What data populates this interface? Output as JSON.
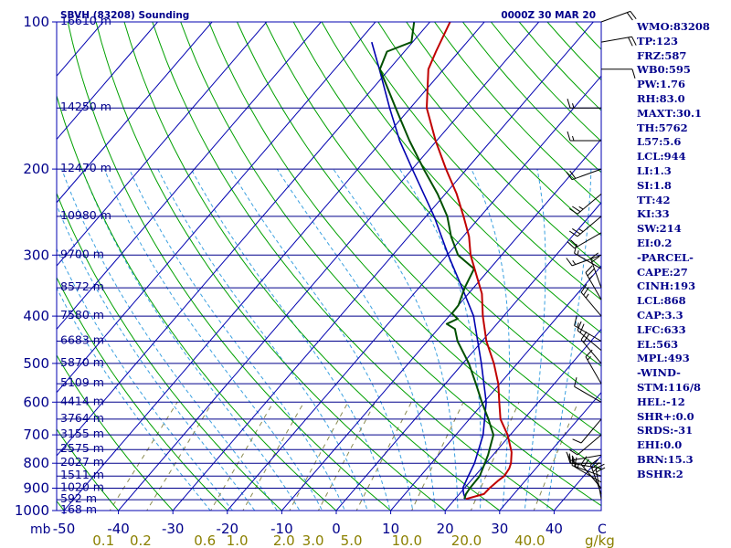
{
  "chart_data": {
    "type": "line",
    "title_left": "SBVH (83208) Sounding",
    "title_right": "0000Z 30 MAR 20",
    "y_axis_unit": "mb",
    "x_axis_unit": "C",
    "mixing_ratio_unit": "g/kg",
    "pressure_ticks": [
      {
        "p": 100,
        "label": "100"
      },
      {
        "p": 200,
        "label": "200"
      },
      {
        "p": 300,
        "label": "300"
      },
      {
        "p": 400,
        "label": "400"
      },
      {
        "p": 500,
        "label": "500"
      },
      {
        "p": 600,
        "label": "600"
      },
      {
        "p": 700,
        "label": "700"
      },
      {
        "p": 800,
        "label": "800"
      },
      {
        "p": 900,
        "label": "900"
      },
      {
        "p": 1000,
        "label": "1000"
      }
    ],
    "temperature_ticks": [
      {
        "t": -50,
        "label": "-50"
      },
      {
        "t": -40,
        "label": "-40"
      },
      {
        "t": -30,
        "label": "-30"
      },
      {
        "t": -20,
        "label": "-20"
      },
      {
        "t": -10,
        "label": "-10"
      },
      {
        "t": 0,
        "label": "0"
      },
      {
        "t": 10,
        "label": "10"
      },
      {
        "t": 20,
        "label": "20"
      },
      {
        "t": 30,
        "label": "30"
      },
      {
        "t": 40,
        "label": "40"
      }
    ],
    "mixing_ratio_labels": [
      {
        "w": 0.1,
        "label": "0.1"
      },
      {
        "w": 0.2,
        "label": "0.2"
      },
      {
        "w": 0.6,
        "label": "0.6"
      },
      {
        "w": 1.0,
        "label": "1.0"
      },
      {
        "w": 2.0,
        "label": "2.0"
      },
      {
        "w": 3.0,
        "label": "3.0"
      },
      {
        "w": 5.0,
        "label": "5.0"
      },
      {
        "w": 10.0,
        "label": "10.0"
      },
      {
        "w": 20.0,
        "label": "20.0"
      },
      {
        "w": 40.0,
        "label": "40.0"
      }
    ],
    "height_levels": [
      {
        "p": 100,
        "label": "16610 m"
      },
      {
        "p": 150,
        "label": "14250 m"
      },
      {
        "p": 200,
        "label": "12470 m"
      },
      {
        "p": 250,
        "label": "10980 m"
      },
      {
        "p": 300,
        "label": "9700 m"
      },
      {
        "p": 350,
        "label": "8572 m"
      },
      {
        "p": 400,
        "label": "7580 m"
      },
      {
        "p": 450,
        "label": "6683 m"
      },
      {
        "p": 500,
        "label": "5870 m"
      },
      {
        "p": 550,
        "label": "5109 m"
      },
      {
        "p": 600,
        "label": "4414 m"
      },
      {
        "p": 650,
        "label": "3764 m"
      },
      {
        "p": 700,
        "label": "3155 m"
      },
      {
        "p": 750,
        "label": "2575 m"
      },
      {
        "p": 800,
        "label": "2027 m"
      },
      {
        "p": 850,
        "label": "1511 m"
      },
      {
        "p": 900,
        "label": "1020 m"
      },
      {
        "p": 950,
        "label": "592 m"
      },
      {
        "p": 1000,
        "label": "168 m"
      }
    ],
    "temperature_profile": {
      "name": "Temperature",
      "color": "#c00000",
      "points": [
        {
          "p": 947,
          "t": 22.0
        },
        {
          "p": 925,
          "t": 24.5
        },
        {
          "p": 900,
          "t": 24.6
        },
        {
          "p": 870,
          "t": 25.0
        },
        {
          "p": 850,
          "t": 25.4
        },
        {
          "p": 820,
          "t": 25.1
        },
        {
          "p": 800,
          "t": 24.6
        },
        {
          "p": 760,
          "t": 23.0
        },
        {
          "p": 700,
          "t": 19.5
        },
        {
          "p": 650,
          "t": 15.7
        },
        {
          "p": 600,
          "t": 12.8
        },
        {
          "p": 550,
          "t": 9.7
        },
        {
          "p": 500,
          "t": 5.7
        },
        {
          "p": 450,
          "t": 0.8
        },
        {
          "p": 400,
          "t": -3.8
        },
        {
          "p": 360,
          "t": -7.5
        },
        {
          "p": 320,
          "t": -12.8
        },
        {
          "p": 300,
          "t": -15.7
        },
        {
          "p": 275,
          "t": -18.9
        },
        {
          "p": 250,
          "t": -23.1
        },
        {
          "p": 225,
          "t": -27.9
        },
        {
          "p": 200,
          "t": -33.8
        },
        {
          "p": 175,
          "t": -40.2
        },
        {
          "p": 150,
          "t": -47.0
        },
        {
          "p": 125,
          "t": -52.8
        },
        {
          "p": 115,
          "t": -54.2
        },
        {
          "p": 100,
          "t": -56.3
        }
      ]
    },
    "dewpoint_profile": {
      "name": "Dewpoint",
      "color": "#005000",
      "points": [
        {
          "p": 947,
          "t": 21.7
        },
        {
          "p": 925,
          "t": 21.2
        },
        {
          "p": 900,
          "t": 21.0
        },
        {
          "p": 850,
          "t": 20.9
        },
        {
          "p": 800,
          "t": 19.8
        },
        {
          "p": 770,
          "t": 19.1
        },
        {
          "p": 700,
          "t": 16.9
        },
        {
          "p": 650,
          "t": 13.5
        },
        {
          "p": 600,
          "t": 9.6
        },
        {
          "p": 550,
          "t": 5.6
        },
        {
          "p": 500,
          "t": 1.1
        },
        {
          "p": 450,
          "t": -4.5
        },
        {
          "p": 425,
          "t": -6.9
        },
        {
          "p": 415,
          "t": -9.2
        },
        {
          "p": 405,
          "t": -8.0
        },
        {
          "p": 395,
          "t": -9.9
        },
        {
          "p": 380,
          "t": -10.0
        },
        {
          "p": 350,
          "t": -11.6
        },
        {
          "p": 320,
          "t": -12.9
        },
        {
          "p": 300,
          "t": -18.0
        },
        {
          "p": 275,
          "t": -22.2
        },
        {
          "p": 250,
          "t": -26.1
        },
        {
          "p": 225,
          "t": -31.4
        },
        {
          "p": 200,
          "t": -37.9
        },
        {
          "p": 175,
          "t": -45.0
        },
        {
          "p": 150,
          "t": -52.7
        },
        {
          "p": 125,
          "t": -61.7
        },
        {
          "p": 115,
          "t": -63.2
        },
        {
          "p": 110,
          "t": -60.2
        },
        {
          "p": 100,
          "t": -62.9
        }
      ]
    },
    "parcel_profile": {
      "name": "Parcel",
      "color": "#0000b0",
      "points": [
        {
          "p": 947,
          "t": 21.9
        },
        {
          "p": 925,
          "t": 20.8
        },
        {
          "p": 900,
          "t": 19.7
        },
        {
          "p": 850,
          "t": 18.8
        },
        {
          "p": 800,
          "t": 17.9
        },
        {
          "p": 700,
          "t": 15.0
        },
        {
          "p": 600,
          "t": 10.4
        },
        {
          "p": 500,
          "t": 3.4
        },
        {
          "p": 450,
          "t": -0.8
        },
        {
          "p": 400,
          "t": -5.5
        },
        {
          "p": 350,
          "t": -12.1
        },
        {
          "p": 300,
          "t": -19.8
        },
        {
          "p": 250,
          "t": -28.5
        },
        {
          "p": 200,
          "t": -40.0
        },
        {
          "p": 175,
          "t": -46.8
        },
        {
          "p": 150,
          "t": -53.8
        },
        {
          "p": 125,
          "t": -61.8
        },
        {
          "p": 110,
          "t": -67.5
        }
      ]
    },
    "wind_barbs": [
      {
        "p": 947,
        "dir": 350,
        "kt": 20
      },
      {
        "p": 925,
        "dir": 340,
        "kt": 25
      },
      {
        "p": 900,
        "dir": 320,
        "kt": 20
      },
      {
        "p": 875,
        "dir": 300,
        "kt": 15
      },
      {
        "p": 850,
        "dir": 290,
        "kt": 15
      },
      {
        "p": 820,
        "dir": 280,
        "kt": 15
      },
      {
        "p": 800,
        "dir": 270,
        "kt": 15
      },
      {
        "p": 770,
        "dir": 260,
        "kt": 15
      },
      {
        "p": 700,
        "dir": 230,
        "kt": 10
      },
      {
        "p": 650,
        "dir": 220,
        "kt": 10
      },
      {
        "p": 600,
        "dir": 300,
        "kt": 10
      },
      {
        "p": 550,
        "dir": 330,
        "kt": 15
      },
      {
        "p": 500,
        "dir": 320,
        "kt": 20
      },
      {
        "p": 470,
        "dir": 310,
        "kt": 20
      },
      {
        "p": 450,
        "dir": 300,
        "kt": 15
      },
      {
        "p": 400,
        "dir": 320,
        "kt": 25
      },
      {
        "p": 370,
        "dir": 330,
        "kt": 25
      },
      {
        "p": 350,
        "dir": 340,
        "kt": 20
      },
      {
        "p": 320,
        "dir": 300,
        "kt": 15
      },
      {
        "p": 300,
        "dir": 250,
        "kt": 15
      },
      {
        "p": 270,
        "dir": 240,
        "kt": 20
      },
      {
        "p": 250,
        "dir": 230,
        "kt": 25
      },
      {
        "p": 225,
        "dir": 230,
        "kt": 25
      },
      {
        "p": 200,
        "dir": 250,
        "kt": 20
      },
      {
        "p": 175,
        "dir": 270,
        "kt": 15
      },
      {
        "p": 150,
        "dir": 270,
        "kt": 15
      },
      {
        "p": 125,
        "dir": 90,
        "kt": 10
      },
      {
        "p": 110,
        "dir": 80,
        "kt": 20
      },
      {
        "p": 100,
        "dir": 70,
        "kt": 20
      }
    ],
    "colors": {
      "isobar": "#00008b",
      "isotherm": "#0000b0",
      "dry_adiabat": "#00a000",
      "moist_adiabat": "#3aa0e0",
      "mixing_ratio": "#8a8a50",
      "frame": "#0000b0",
      "mixing_ratio_label": "#8b8000",
      "axis_label": "#00008b"
    }
  },
  "indices": [
    "WMO:83208",
    "TP:123",
    "FRZ:587",
    "WB0:595",
    "PW:1.76",
    "RH:83.0",
    "MAXT:30.1",
    "TH:5762",
    "L57:5.6",
    "LCL:944",
    "LI:1.3",
    "SI:1.8",
    "TT:42",
    "KI:33",
    "SW:214",
    "EI:0.2",
    "-PARCEL-",
    "CAPE:27",
    "CINH:193",
    "LCL:868",
    "CAP:3.3",
    "LFC:633",
    "EL:563",
    "MPL:493",
    "-WIND-",
    "STM:116/8",
    "HEL:-12",
    "SHR+:0.0",
    "SRDS:-31",
    "EHI:0.0",
    "BRN:15.3",
    "BSHR:2"
  ]
}
